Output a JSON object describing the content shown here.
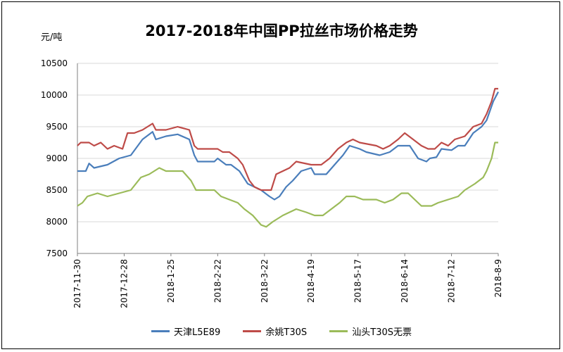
{
  "chart_data": {
    "type": "line",
    "title": "2017-2018年中国PP拉丝市场价格走势",
    "ylabel": "元/吨",
    "xlabel": "",
    "ylim": [
      7500,
      10500
    ],
    "yticks": [
      7500,
      8000,
      8500,
      9000,
      9500,
      10000,
      10500
    ],
    "xlim": [
      "2017-11-30",
      "2018-08-09"
    ],
    "xticks": [
      "2017-11-30",
      "2017-12-28",
      "2018-1-25",
      "2018-2-22",
      "2018-3-22",
      "2018-4-19",
      "2018-5-17",
      "2018-6-14",
      "2018-7-12",
      "2018-8-9"
    ],
    "grid": "horizontal",
    "legend": "bottom",
    "series": [
      {
        "name": "天津L5E89",
        "color": "#4a7ebb",
        "points": [
          [
            "2017-11-30",
            8800
          ],
          [
            "2017-12-05",
            8800
          ],
          [
            "2017-12-07",
            8920
          ],
          [
            "2017-12-10",
            8850
          ],
          [
            "2017-12-18",
            8900
          ],
          [
            "2017-12-25",
            9000
          ],
          [
            "2018-01-01",
            9050
          ],
          [
            "2018-01-08",
            9300
          ],
          [
            "2018-01-14",
            9420
          ],
          [
            "2018-01-16",
            9300
          ],
          [
            "2018-01-22",
            9350
          ],
          [
            "2018-01-29",
            9380
          ],
          [
            "2018-02-05",
            9300
          ],
          [
            "2018-02-08",
            9050
          ],
          [
            "2018-02-10",
            8950
          ],
          [
            "2018-02-20",
            8950
          ],
          [
            "2018-02-22",
            9000
          ],
          [
            "2018-02-27",
            8900
          ],
          [
            "2018-03-02",
            8900
          ],
          [
            "2018-03-07",
            8800
          ],
          [
            "2018-03-12",
            8600
          ],
          [
            "2018-03-16",
            8550
          ],
          [
            "2018-03-20",
            8500
          ],
          [
            "2018-03-25",
            8400
          ],
          [
            "2018-03-28",
            8350
          ],
          [
            "2018-03-31",
            8400
          ],
          [
            "2018-04-04",
            8550
          ],
          [
            "2018-04-08",
            8650
          ],
          [
            "2018-04-13",
            8800
          ],
          [
            "2018-04-19",
            8850
          ],
          [
            "2018-04-21",
            8750
          ],
          [
            "2018-04-28",
            8750
          ],
          [
            "2018-05-03",
            8900
          ],
          [
            "2018-05-08",
            9050
          ],
          [
            "2018-05-12",
            9200
          ],
          [
            "2018-05-18",
            9150
          ],
          [
            "2018-05-22",
            9100
          ],
          [
            "2018-05-30",
            9050
          ],
          [
            "2018-06-05",
            9100
          ],
          [
            "2018-06-10",
            9200
          ],
          [
            "2018-06-17",
            9200
          ],
          [
            "2018-06-22",
            9000
          ],
          [
            "2018-06-27",
            8950
          ],
          [
            "2018-06-29",
            9000
          ],
          [
            "2018-07-03",
            9020
          ],
          [
            "2018-07-06",
            9150
          ],
          [
            "2018-07-12",
            9130
          ],
          [
            "2018-07-16",
            9200
          ],
          [
            "2018-07-20",
            9200
          ],
          [
            "2018-07-25",
            9400
          ],
          [
            "2018-07-30",
            9500
          ],
          [
            "2018-08-02",
            9600
          ],
          [
            "2018-08-06",
            9900
          ],
          [
            "2018-08-09",
            10050
          ]
        ]
      },
      {
        "name": "余姚T30S",
        "color": "#be4b48",
        "points": [
          [
            "2017-11-30",
            9200
          ],
          [
            "2017-12-02",
            9250
          ],
          [
            "2017-12-07",
            9250
          ],
          [
            "2017-12-10",
            9200
          ],
          [
            "2017-12-14",
            9250
          ],
          [
            "2017-12-18",
            9150
          ],
          [
            "2017-12-22",
            9200
          ],
          [
            "2017-12-27",
            9150
          ],
          [
            "2017-12-30",
            9400
          ],
          [
            "2018-01-03",
            9400
          ],
          [
            "2018-01-08",
            9450
          ],
          [
            "2018-01-14",
            9550
          ],
          [
            "2018-01-16",
            9450
          ],
          [
            "2018-01-22",
            9450
          ],
          [
            "2018-01-29",
            9500
          ],
          [
            "2018-02-05",
            9450
          ],
          [
            "2018-02-08",
            9200
          ],
          [
            "2018-02-10",
            9150
          ],
          [
            "2018-02-22",
            9150
          ],
          [
            "2018-02-25",
            9100
          ],
          [
            "2018-03-01",
            9100
          ],
          [
            "2018-03-06",
            9000
          ],
          [
            "2018-03-09",
            8900
          ],
          [
            "2018-03-13",
            8650
          ],
          [
            "2018-03-16",
            8550
          ],
          [
            "2018-03-20",
            8500
          ],
          [
            "2018-03-26",
            8500
          ],
          [
            "2018-03-29",
            8750
          ],
          [
            "2018-04-02",
            8800
          ],
          [
            "2018-04-06",
            8850
          ],
          [
            "2018-04-10",
            8950
          ],
          [
            "2018-04-19",
            8900
          ],
          [
            "2018-04-25",
            8900
          ],
          [
            "2018-04-30",
            9000
          ],
          [
            "2018-05-05",
            9150
          ],
          [
            "2018-05-10",
            9250
          ],
          [
            "2018-05-14",
            9300
          ],
          [
            "2018-05-18",
            9250
          ],
          [
            "2018-05-28",
            9200
          ],
          [
            "2018-06-01",
            9150
          ],
          [
            "2018-06-05",
            9200
          ],
          [
            "2018-06-10",
            9300
          ],
          [
            "2018-06-14",
            9400
          ],
          [
            "2018-06-19",
            9300
          ],
          [
            "2018-06-24",
            9200
          ],
          [
            "2018-06-28",
            9150
          ],
          [
            "2018-07-02",
            9150
          ],
          [
            "2018-07-06",
            9250
          ],
          [
            "2018-07-10",
            9200
          ],
          [
            "2018-07-14",
            9300
          ],
          [
            "2018-07-20",
            9350
          ],
          [
            "2018-07-25",
            9500
          ],
          [
            "2018-07-30",
            9550
          ],
          [
            "2018-08-02",
            9700
          ],
          [
            "2018-08-05",
            9900
          ],
          [
            "2018-08-07",
            10100
          ],
          [
            "2018-08-09",
            10100
          ]
        ]
      },
      {
        "name": "汕头T30S无票",
        "color": "#9bbb59",
        "points": [
          [
            "2017-11-30",
            8250
          ],
          [
            "2017-12-03",
            8300
          ],
          [
            "2017-12-06",
            8400
          ],
          [
            "2017-12-12",
            8450
          ],
          [
            "2017-12-18",
            8400
          ],
          [
            "2017-12-25",
            8450
          ],
          [
            "2018-01-01",
            8500
          ],
          [
            "2018-01-07",
            8700
          ],
          [
            "2018-01-12",
            8750
          ],
          [
            "2018-01-18",
            8850
          ],
          [
            "2018-01-22",
            8800
          ],
          [
            "2018-02-01",
            8800
          ],
          [
            "2018-02-06",
            8650
          ],
          [
            "2018-02-09",
            8500
          ],
          [
            "2018-02-20",
            8500
          ],
          [
            "2018-02-24",
            8400
          ],
          [
            "2018-03-01",
            8350
          ],
          [
            "2018-03-06",
            8300
          ],
          [
            "2018-03-10",
            8200
          ],
          [
            "2018-03-15",
            8100
          ],
          [
            "2018-03-20",
            7950
          ],
          [
            "2018-03-23",
            7920
          ],
          [
            "2018-03-27",
            8000
          ],
          [
            "2018-04-02",
            8100
          ],
          [
            "2018-04-06",
            8150
          ],
          [
            "2018-04-10",
            8200
          ],
          [
            "2018-04-16",
            8150
          ],
          [
            "2018-04-21",
            8100
          ],
          [
            "2018-04-26",
            8100
          ],
          [
            "2018-05-01",
            8200
          ],
          [
            "2018-05-06",
            8300
          ],
          [
            "2018-05-10",
            8400
          ],
          [
            "2018-05-15",
            8400
          ],
          [
            "2018-05-20",
            8350
          ],
          [
            "2018-05-28",
            8350
          ],
          [
            "2018-06-02",
            8300
          ],
          [
            "2018-06-07",
            8350
          ],
          [
            "2018-06-12",
            8450
          ],
          [
            "2018-06-16",
            8450
          ],
          [
            "2018-06-20",
            8350
          ],
          [
            "2018-06-24",
            8250
          ],
          [
            "2018-06-30",
            8250
          ],
          [
            "2018-07-04",
            8300
          ],
          [
            "2018-07-10",
            8350
          ],
          [
            "2018-07-16",
            8400
          ],
          [
            "2018-07-20",
            8500
          ],
          [
            "2018-07-26",
            8600
          ],
          [
            "2018-07-31",
            8700
          ],
          [
            "2018-08-02",
            8800
          ],
          [
            "2018-08-05",
            9000
          ],
          [
            "2018-08-07",
            9250
          ],
          [
            "2018-08-09",
            9250
          ]
        ]
      }
    ]
  }
}
